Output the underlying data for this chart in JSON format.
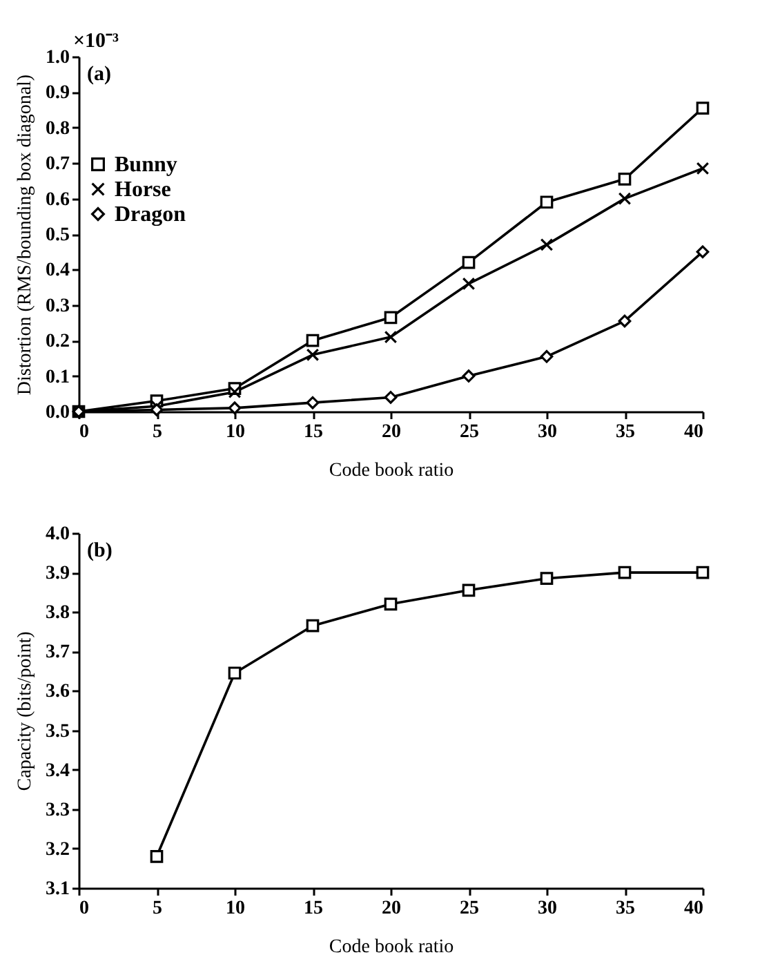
{
  "chart_data": [
    {
      "type": "line",
      "xlabel": "Code book ratio",
      "ylabel": "Distortion (RMS/bounding box diagonal)",
      "annotations": [
        "×10⁻³",
        "(a)"
      ],
      "x": [
        0,
        5,
        10,
        15,
        20,
        25,
        30,
        35,
        40
      ],
      "series": [
        {
          "name": "Bunny",
          "color": "#000000",
          "marker": "square",
          "values": [
            0,
            0.03,
            0.065,
            0.2,
            0.265,
            0.42,
            0.59,
            0.655,
            0.855
          ]
        },
        {
          "name": "Horse",
          "color": "#000000",
          "marker": "cross",
          "values": [
            0,
            0.015,
            0.055,
            0.16,
            0.21,
            0.36,
            0.47,
            0.6,
            0.685
          ]
        },
        {
          "name": "Dragon",
          "color": "#000000",
          "marker": "diamond",
          "values": [
            0,
            0.005,
            0.01,
            0.025,
            0.04,
            0.1,
            0.155,
            0.255,
            0.45
          ]
        }
      ],
      "xlim": [
        0,
        40
      ],
      "xticks": [
        0,
        5,
        10,
        15,
        20,
        25,
        30,
        35,
        40
      ],
      "ylim": [
        0,
        1
      ],
      "yticks": [
        {
          "value": 0,
          "label": "0.0"
        },
        0.1,
        0.2,
        0.3,
        0.4,
        0.5,
        0.6,
        0.7,
        0.8,
        0.9,
        {
          "value": 1,
          "label": "1.0"
        }
      ],
      "legend": "top left",
      "line_style": "solid"
    },
    {
      "type": "line",
      "xlabel": "Code book ratio",
      "ylabel": "Capacity (bits/point)",
      "annotations": [
        "(b)"
      ],
      "x": [
        5,
        10,
        15,
        20,
        25,
        30,
        35,
        40
      ],
      "series": [
        {
          "color": "#000000",
          "marker": "square",
          "values": [
            3.18,
            3.645,
            3.765,
            3.82,
            3.855,
            3.885,
            3.9,
            3.9
          ]
        }
      ],
      "xlim": [
        0,
        40
      ],
      "xticks": [
        0,
        5,
        10,
        15,
        20,
        25,
        30,
        35,
        40
      ],
      "ylim": [
        3.1,
        4.0
      ],
      "yticks": [
        3.1,
        3.2,
        3.3,
        3.4,
        3.5,
        3.6,
        3.7,
        3.8,
        3.9,
        {
          "value": 4,
          "label": "4.0"
        }
      ],
      "line_style": "solid"
    }
  ]
}
